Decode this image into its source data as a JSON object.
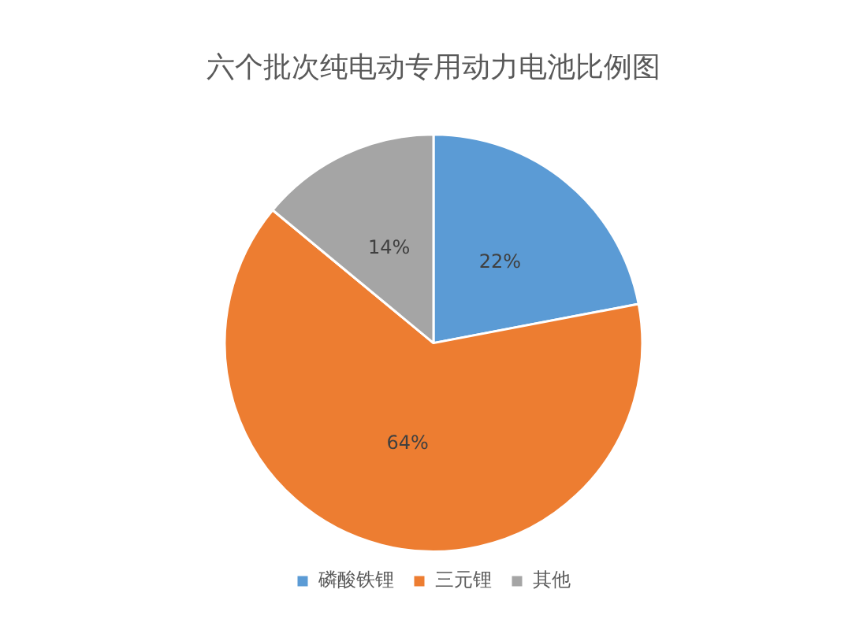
{
  "chart_data": {
    "type": "pie",
    "title": "六个批次纯电动专用动力电池比例图",
    "categories": [
      "磷酸铁锂",
      "三元锂",
      "其他"
    ],
    "values": [
      22,
      64,
      14
    ],
    "colors": [
      "#5b9bd5",
      "#ed7d31",
      "#a5a5a5"
    ],
    "value_labels": [
      "22%",
      "64%",
      "14%"
    ],
    "legend": "bottom"
  }
}
